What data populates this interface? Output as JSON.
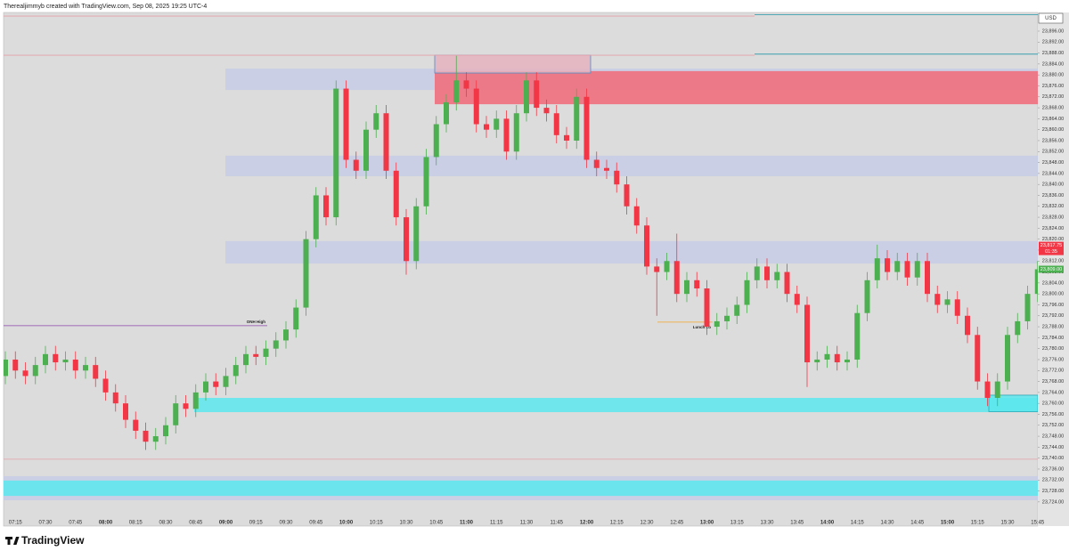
{
  "chart_data": {
    "type": "candlestick",
    "header": "Therealjimmyb created with TradingView.com, Sep 08, 2025 19:25 UTC-4",
    "brand": "TradingView",
    "currency": "USD",
    "countdown": "01:35",
    "up_color": "#4caf50",
    "down_color": "#f23645",
    "categories": [
      null,
      "07:15",
      null,
      null,
      "07:30",
      null,
      null,
      "07:45",
      null,
      null,
      "08:00",
      null,
      null,
      "08:15",
      null,
      null,
      "08:30",
      null,
      null,
      "08:45",
      null,
      null,
      "09:00",
      null,
      null,
      "09:15",
      null,
      null,
      "09:30",
      null,
      null,
      "09:45",
      null,
      null,
      "10:00",
      null,
      null,
      "10:15",
      null,
      null,
      "10:30",
      null,
      null,
      "10:45",
      null,
      null,
      "11:00",
      null,
      null,
      "11:15",
      null,
      null,
      "11:30",
      null,
      null,
      "11:45",
      null,
      null,
      "12:00",
      null,
      null,
      "12:15",
      null,
      null,
      "12:30",
      null,
      null,
      "12:45",
      null,
      null,
      "13:00",
      null,
      null,
      "13:15",
      null,
      null,
      "13:30",
      null,
      null,
      "13:45",
      null,
      null,
      "14:00",
      null,
      null,
      "14:15",
      null,
      null,
      "14:30",
      null,
      null,
      "14:45",
      null,
      null,
      "15:00",
      null,
      null,
      "15:15",
      null,
      null,
      "15:30",
      null,
      null,
      "15:45"
    ],
    "open": [
      23770,
      23776,
      23772,
      23770,
      23774,
      23778,
      23775,
      23776,
      23772,
      23774,
      23769,
      23764,
      23760,
      23754,
      23750,
      23746,
      23748,
      23752,
      23760,
      23758,
      23764,
      23768,
      23766,
      23770,
      23774,
      23778,
      23777,
      23780,
      23783,
      23787,
      23795,
      23820,
      23836,
      23828,
      23875,
      23849,
      23845,
      23860,
      23866,
      23845,
      23828,
      23812,
      23832,
      23850,
      23862,
      23870,
      23878,
      23875,
      23862,
      23860,
      23864,
      23852,
      23866,
      23878,
      23868,
      23866,
      23858,
      23856,
      23872,
      23849,
      23846,
      23845,
      23840,
      23832,
      23825,
      23810,
      23808,
      23812,
      23800,
      23805,
      23802,
      23788,
      23790,
      23792,
      23796,
      23805,
      23810,
      23805,
      23808,
      23800,
      23796,
      23775,
      23776,
      23778,
      23775,
      23776,
      23793,
      23805,
      23813,
      23808,
      23812,
      23806,
      23812,
      23800,
      23796,
      23798,
      23792,
      23785,
      23768,
      23762,
      23768,
      23785,
      23790,
      23800
    ],
    "high": [
      23779,
      23779,
      23775,
      23777,
      23781,
      23781,
      23779,
      23779,
      23777,
      23777,
      23772,
      23767,
      23763,
      23757,
      23753,
      23751,
      23755,
      23763,
      23763,
      23767,
      23771,
      23771,
      23773,
      23777,
      23781,
      23781,
      23783,
      23786,
      23790,
      23798,
      23823,
      23839,
      23839,
      23878,
      23878,
      23852,
      23863,
      23869,
      23869,
      23848,
      23831,
      23835,
      23853,
      23865,
      23873,
      23887,
      23881,
      23878,
      23865,
      23867,
      23867,
      23869,
      23881,
      23881,
      23871,
      23869,
      23861,
      23875,
      23875,
      23852,
      23849,
      23848,
      23843,
      23835,
      23828,
      23813,
      23815,
      23822,
      23808,
      23808,
      23805,
      23793,
      23795,
      23799,
      23808,
      23813,
      23813,
      23811,
      23811,
      23803,
      23799,
      23779,
      23781,
      23781,
      23779,
      23796,
      23808,
      23818,
      23816,
      23815,
      23815,
      23815,
      23815,
      23803,
      23801,
      23801,
      23795,
      23788,
      23771,
      23771,
      23788,
      23793,
      23803,
      23812
    ],
    "low": [
      23767,
      23769,
      23767,
      23767,
      23771,
      23772,
      23772,
      23769,
      23769,
      23766,
      23761,
      23757,
      23751,
      23747,
      23743,
      23743,
      23745,
      23749,
      23755,
      23755,
      23761,
      23763,
      23763,
      23767,
      23771,
      23774,
      23774,
      23777,
      23780,
      23784,
      23792,
      23817,
      23825,
      23825,
      23846,
      23842,
      23842,
      23857,
      23842,
      23825,
      23807,
      23809,
      23829,
      23847,
      23859,
      23867,
      23872,
      23859,
      23857,
      23857,
      23849,
      23849,
      23863,
      23865,
      23863,
      23855,
      23853,
      23853,
      23846,
      23843,
      23842,
      23837,
      23829,
      23822,
      23807,
      23792,
      23805,
      23797,
      23797,
      23799,
      23785,
      23785,
      23787,
      23789,
      23793,
      23802,
      23802,
      23802,
      23797,
      23793,
      23766,
      23772,
      23773,
      23772,
      23772,
      23773,
      23790,
      23802,
      23805,
      23805,
      23803,
      23803,
      23797,
      23793,
      23793,
      23789,
      23782,
      23765,
      23759,
      23759,
      23765,
      23782,
      23787,
      23797
    ],
    "close": [
      23776,
      23772,
      23770,
      23774,
      23778,
      23775,
      23776,
      23772,
      23774,
      23769,
      23764,
      23760,
      23754,
      23750,
      23746,
      23748,
      23752,
      23760,
      23758,
      23764,
      23768,
      23766,
      23770,
      23774,
      23778,
      23777,
      23780,
      23783,
      23787,
      23795,
      23820,
      23836,
      23828,
      23875,
      23849,
      23845,
      23860,
      23866,
      23845,
      23828,
      23812,
      23832,
      23850,
      23862,
      23870,
      23878,
      23875,
      23862,
      23860,
      23864,
      23852,
      23866,
      23878,
      23868,
      23866,
      23858,
      23856,
      23872,
      23849,
      23846,
      23845,
      23840,
      23832,
      23825,
      23810,
      23808,
      23812,
      23800,
      23805,
      23802,
      23788,
      23790,
      23792,
      23796,
      23805,
      23810,
      23805,
      23808,
      23800,
      23796,
      23775,
      23776,
      23778,
      23775,
      23776,
      23793,
      23805,
      23813,
      23808,
      23812,
      23806,
      23812,
      23800,
      23796,
      23798,
      23792,
      23785,
      23768,
      23762,
      23768,
      23785,
      23790,
      23800,
      23809
    ],
    "ylim": [
      23715.5,
      23902.5
    ],
    "yticks": [
      {
        "value": 23724,
        "label": "23,724.00"
      },
      {
        "value": 23728,
        "label": "23,728.00"
      },
      {
        "value": 23732,
        "label": "23,732.00"
      },
      {
        "value": 23736,
        "label": "23,736.00"
      },
      {
        "value": 23740,
        "label": "23,740.00"
      },
      {
        "value": 23744,
        "label": "23,744.00"
      },
      {
        "value": 23748,
        "label": "23,748.00"
      },
      {
        "value": 23752,
        "label": "23,752.00"
      },
      {
        "value": 23756,
        "label": "23,756.00"
      },
      {
        "value": 23760,
        "label": "23,760.00"
      },
      {
        "value": 23764,
        "label": "23,764.00"
      },
      {
        "value": 23768,
        "label": "23,768.00"
      },
      {
        "value": 23772,
        "label": "23,772.00"
      },
      {
        "value": 23776,
        "label": "23,776.00"
      },
      {
        "value": 23780,
        "label": "23,780.00"
      },
      {
        "value": 23784,
        "label": "23,784.00"
      },
      {
        "value": 23788,
        "label": "23,788.00"
      },
      {
        "value": 23792,
        "label": "23,792.00"
      },
      {
        "value": 23796,
        "label": "23,796.00"
      },
      {
        "value": 23800,
        "label": "23,800.00"
      },
      {
        "value": 23804,
        "label": "23,804.00"
      },
      {
        "value": 23808,
        "label": "23,808.00"
      },
      {
        "value": 23812,
        "label": "23,812.00"
      },
      {
        "value": 23816,
        "label": "23,816.00"
      },
      {
        "value": 23820,
        "label": "23,820.00"
      },
      {
        "value": 23824,
        "label": "23,824.00"
      },
      {
        "value": 23828,
        "label": "23,828.00"
      },
      {
        "value": 23832,
        "label": "23,832.00"
      },
      {
        "value": 23836,
        "label": "23,836.00"
      },
      {
        "value": 23840,
        "label": "23,840.00"
      },
      {
        "value": 23844,
        "label": "23,844.00"
      },
      {
        "value": 23848,
        "label": "23,848.00"
      },
      {
        "value": 23852,
        "label": "23,852.00"
      },
      {
        "value": 23856,
        "label": "23,856.00"
      },
      {
        "value": 23860,
        "label": "23,860.00"
      },
      {
        "value": 23864,
        "label": "23,864.00"
      },
      {
        "value": 23868,
        "label": "23,868.00"
      },
      {
        "value": 23872,
        "label": "23,872.00"
      },
      {
        "value": 23876,
        "label": "23,876.00"
      },
      {
        "value": 23880,
        "label": "23,880.00"
      },
      {
        "value": 23884,
        "label": "23,884.00"
      },
      {
        "value": 23888,
        "label": "23,888.00"
      },
      {
        "value": 23892,
        "label": "23,892.00"
      },
      {
        "value": 23896,
        "label": "23,896.00"
      }
    ],
    "grid": false,
    "zones": [
      {
        "low": 23874.5,
        "high": 23882.3,
        "color": "#c7cde6"
      },
      {
        "low": 23843,
        "high": 23850.5,
        "color": "#c7cde6"
      },
      {
        "low": 23811.1,
        "high": 23819.3,
        "color": "#c7cde6"
      },
      {
        "low": 23869.3,
        "high": 23881.4,
        "color": "#ef6f7d"
      },
      {
        "low": 23880.7,
        "high": 23887.2,
        "color": "#e6b3bf"
      },
      {
        "low": 23756.8,
        "high": 23762,
        "color": "#5ce8ef"
      },
      {
        "low": 23724.6,
        "high": 23733.4,
        "color": "#c7cde6"
      },
      {
        "low": 23726.2,
        "high": 23731.8,
        "color": "#5ce8ef"
      },
      {
        "low": 23757,
        "high": 23763,
        "color": "#5ce8ef"
      }
    ],
    "levels": [
      {
        "value": 23901.5,
        "color": "#e3a0a8"
      },
      {
        "value": 23902,
        "color": "#2196a8"
      },
      {
        "value": 23887.2,
        "color": "#e3a0a8"
      },
      {
        "value": 23887.6,
        "color": "#2196a8"
      },
      {
        "value": 23788.4,
        "color": "#8e44ad",
        "label": "ONH High"
      },
      {
        "value": 23789.7,
        "color": "#f5a623",
        "label": "Lunch Lo"
      },
      {
        "value": 23739.6,
        "color": "#e3a0a8"
      }
    ],
    "price_labels": [
      {
        "value": 23817.75,
        "label": "23,817.75",
        "color": "#f23645"
      },
      {
        "value": 23809,
        "label": "23,809.00",
        "color": "#4caf50"
      }
    ]
  }
}
